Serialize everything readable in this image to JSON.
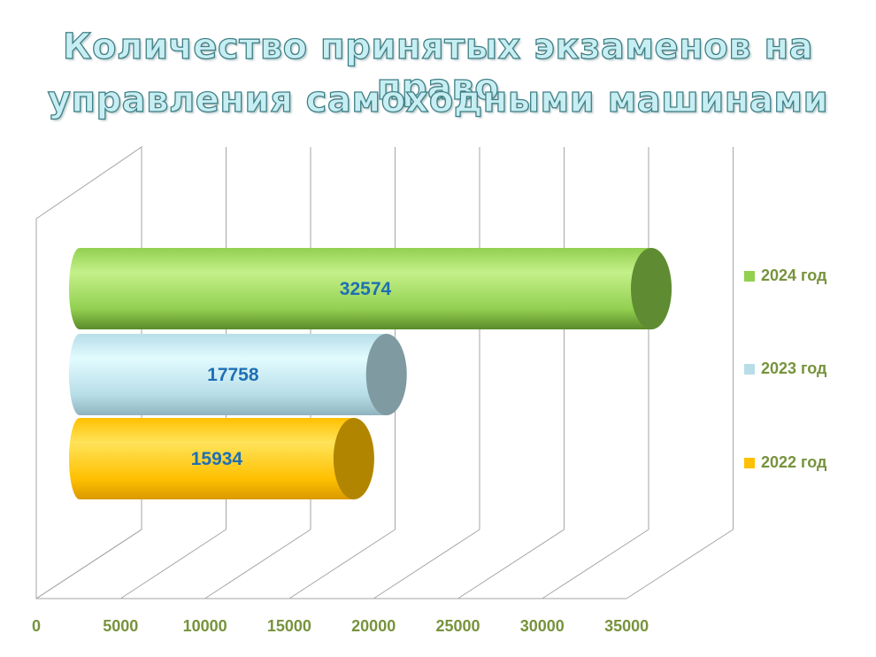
{
  "title_lines": [
    "Количество принятых экзаменов на право",
    "управления самоходными машинами"
  ],
  "colors": {
    "title_fill": "#c7eef2",
    "title_outline": "#3f7f86",
    "gridline": "#a6a6a6",
    "tick_label": "#77933c",
    "value_label": "#1f6fb4",
    "legend_text": "#77933c"
  },
  "chart_data": {
    "type": "bar",
    "orientation": "horizontal",
    "style": "3d-cylinder",
    "title": "Количество принятых экзаменов на право управления самоходными машинами",
    "xlim": [
      0,
      35000
    ],
    "x_ticks": [
      "0",
      "5000",
      "10000",
      "15000",
      "20000",
      "25000",
      "30000",
      "35000"
    ],
    "grid": true,
    "legend_position": "right",
    "series": [
      {
        "name": "2024 год",
        "value": 32574,
        "label": "32574",
        "color": "#92d050"
      },
      {
        "name": "2023 год",
        "value": 17758,
        "label": "17758",
        "color": "#b7dee8"
      },
      {
        "name": "2022 год",
        "value": 15934,
        "label": "15934",
        "color": "#ffc000"
      }
    ]
  }
}
